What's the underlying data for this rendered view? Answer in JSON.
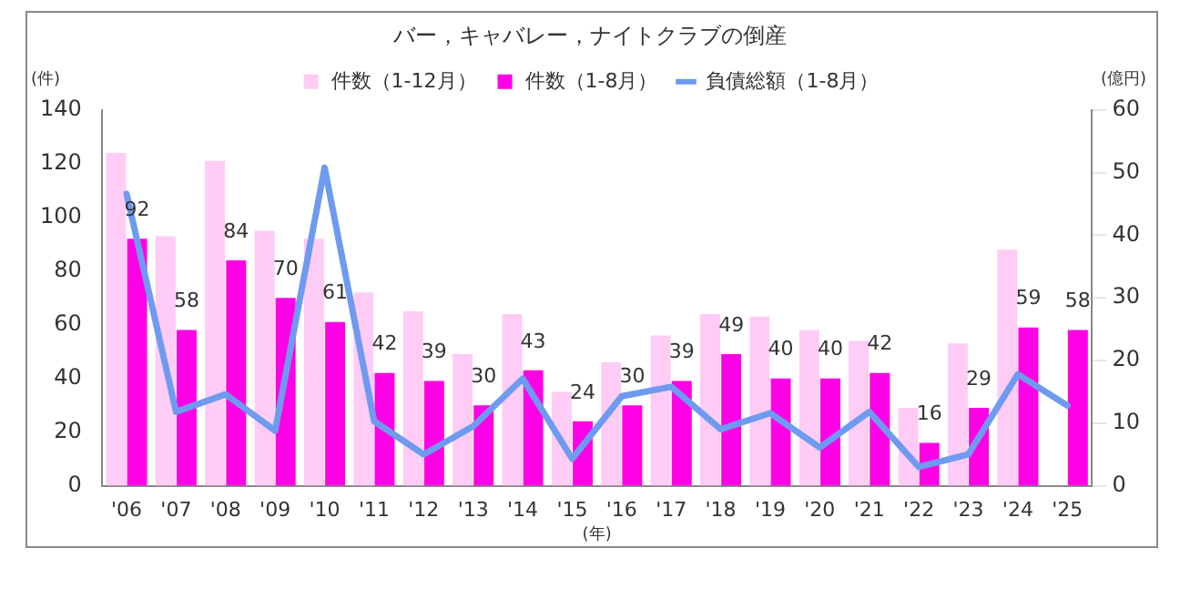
{
  "chart_data": {
    "type": "bar",
    "title": "バー，キャバレー，ナイトクラブの倒産",
    "xlabel": "(年)",
    "ylabel": "(件)",
    "y2label": "(億円)",
    "categories": [
      "'06",
      "'07",
      "'08",
      "'09",
      "'10",
      "'11",
      "'12",
      "'13",
      "'14",
      "'15",
      "'16",
      "'17",
      "'18",
      "'19",
      "'20",
      "'21",
      "'22",
      "'23",
      "'24",
      "'25"
    ],
    "series": [
      {
        "name": "件数（1-12月）",
        "color": "#ffccf5",
        "values": [
          124,
          93,
          121,
          95,
          92,
          72,
          65,
          49,
          64,
          35,
          46,
          56,
          64,
          63,
          58,
          54,
          29,
          53,
          88,
          null
        ]
      },
      {
        "name": "件数（1-8月）",
        "color": "#ff00e6",
        "values": [
          92,
          58,
          84,
          70,
          61,
          42,
          39,
          30,
          43,
          24,
          30,
          39,
          49,
          40,
          40,
          42,
          16,
          29,
          59,
          58
        ],
        "value_labels": [
          "92",
          "58",
          "84",
          "70",
          "61",
          "42",
          "39",
          "30",
          "43",
          "24",
          "30",
          "39",
          "49",
          "40",
          "40",
          "42",
          "16",
          "29",
          "59",
          "58"
        ]
      },
      {
        "name": "負債総額（1-8月）",
        "type": "line",
        "axis": "y2",
        "color": "#6e9af0",
        "values": [
          46.6,
          11.8,
          14.6,
          8.8,
          50.8,
          10.3,
          5,
          9.5,
          17.1,
          4.3,
          14.3,
          15.8,
          9,
          11.6,
          6.1,
          11.8,
          3,
          5,
          17.8,
          12.8
        ]
      }
    ],
    "ylim": [
      0,
      140
    ],
    "yticks": [
      0,
      20,
      40,
      60,
      80,
      100,
      120,
      140
    ],
    "y2lim": [
      0,
      60
    ],
    "y2ticks": [
      0,
      10,
      20,
      30,
      40,
      50,
      60
    ],
    "grid": false,
    "legend": "top",
    "marker": "none",
    "line_style": "solid"
  }
}
